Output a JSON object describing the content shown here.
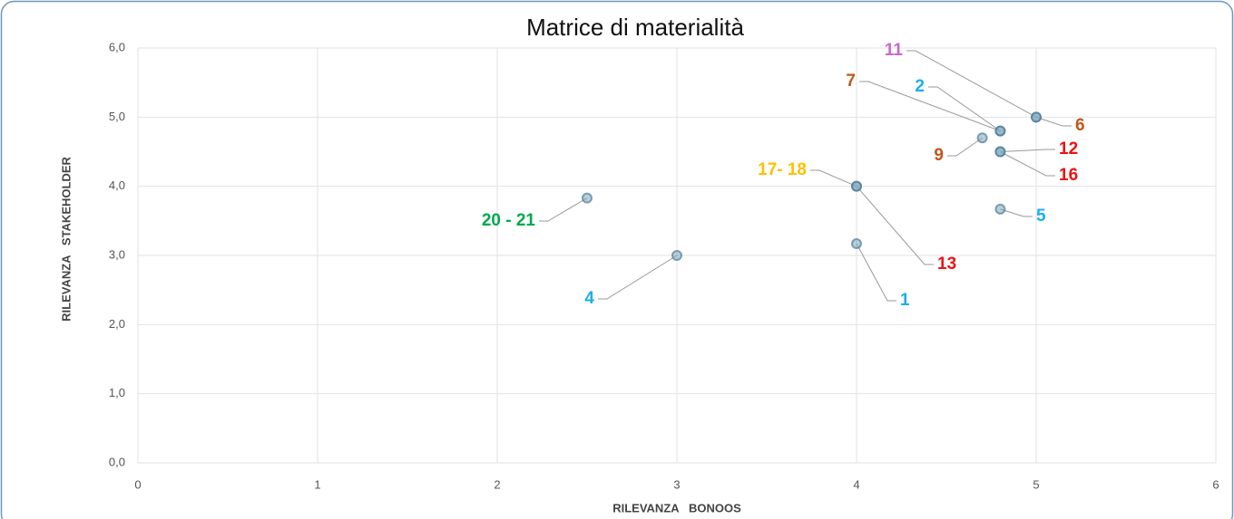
{
  "chart_data": {
    "type": "scatter",
    "title": "Matrice di materialità",
    "x_label": "RILEVANZA   BONOOS",
    "y_label": "RILEVANZA   STAKEHOLDER",
    "x": [
      5,
      5,
      4.8,
      4.8,
      4.7,
      4.8,
      4.8,
      4,
      4,
      2.5,
      4.8,
      3,
      4
    ],
    "y": [
      5,
      5,
      4.8,
      4.8,
      4.7,
      4.5,
      4.5,
      4,
      4,
      3.83,
      3.67,
      3,
      3.17
    ],
    "point_labels": [
      "11",
      "6",
      "7",
      "2",
      "9",
      "12",
      "16",
      "17- 18",
      "13",
      "20 - 21",
      "5",
      "4",
      "1"
    ],
    "label_colors": [
      "#cc66cc",
      "#c0561c",
      "#c0561c",
      "#1ab0e8",
      "#c0561c",
      "#ee1111",
      "#ee1111",
      "#ffbf00",
      "#ee1111",
      "#00a84f",
      "#1ab0e8",
      "#1ab0e8",
      "#1ab0e8"
    ],
    "color": "#7fa6bd",
    "xlim": [
      0,
      6
    ],
    "xticks": [
      0,
      1,
      2,
      3,
      4,
      5,
      6
    ],
    "ylim": [
      0,
      6
    ],
    "yticks": [
      {
        "value": 0,
        "label": "0,0"
      },
      {
        "value": 1,
        "label": "1,0"
      },
      {
        "value": 2,
        "label": "2,0"
      },
      {
        "value": 3,
        "label": "3,0"
      },
      {
        "value": 4,
        "label": "4,0"
      },
      {
        "value": 5,
        "label": "5,0"
      },
      {
        "value": 6,
        "label": "6,0"
      }
    ],
    "grid": true
  }
}
